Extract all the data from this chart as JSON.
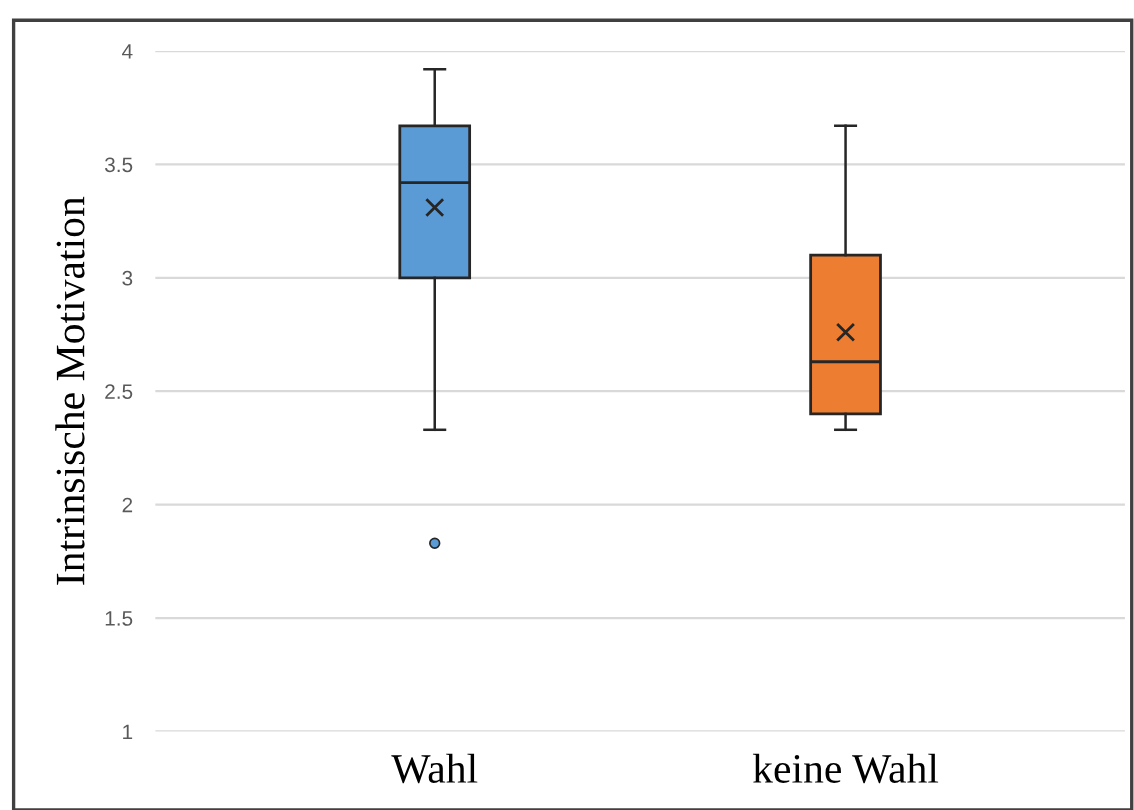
{
  "chart_data": {
    "type": "box",
    "ylabel": "Intrinsische Motivation",
    "categories": [
      "Wahl",
      "keine Wahl"
    ],
    "colors": [
      "#5b9bd5",
      "#ed7d31"
    ],
    "boxes": [
      {
        "low": 2.33,
        "q1": 3.0,
        "median": 3.42,
        "q3": 3.67,
        "high": 3.92,
        "mean": 3.31,
        "outliers": [
          1.83
        ]
      },
      {
        "low": 2.33,
        "q1": 2.4,
        "median": 2.63,
        "q3": 3.1,
        "high": 3.67,
        "mean": 2.76
      }
    ],
    "ylim": [
      1,
      4
    ],
    "yticks": [
      1,
      1.5,
      2,
      2.5,
      3,
      3.5,
      4
    ],
    "grid": "y",
    "legend": false
  }
}
